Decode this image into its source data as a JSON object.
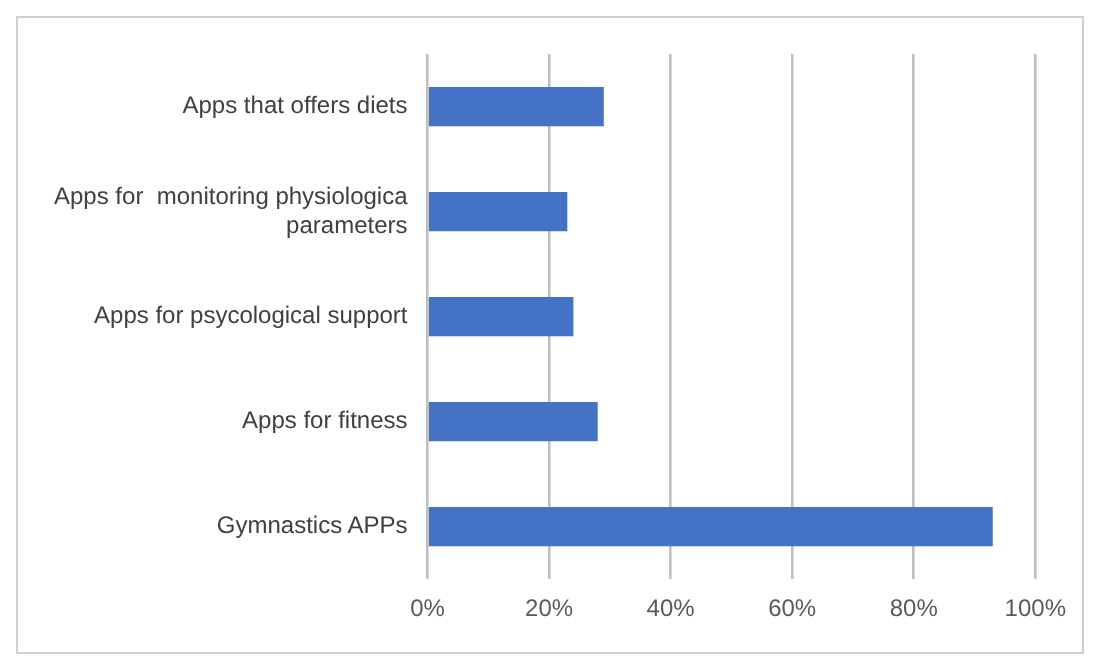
{
  "chart_data": {
    "type": "bar",
    "orientation": "horizontal",
    "categories": [
      "Apps that offers diets",
      "Apps for  monitoring physiologica parameters",
      "Apps for psycological support",
      "Apps for fitness",
      "Gymnastics APPs"
    ],
    "values": [
      29,
      23,
      24,
      28,
      93
    ],
    "color": "#4472c4",
    "xlim": [
      0,
      100
    ],
    "xticks": [
      {
        "value": 0,
        "label": "0%"
      },
      {
        "value": 20,
        "label": "20%"
      },
      {
        "value": 40,
        "label": "40%"
      },
      {
        "value": 60,
        "label": "60%"
      },
      {
        "value": 80,
        "label": "80%"
      },
      {
        "value": 100,
        "label": "100%"
      }
    ],
    "grid": "x"
  }
}
